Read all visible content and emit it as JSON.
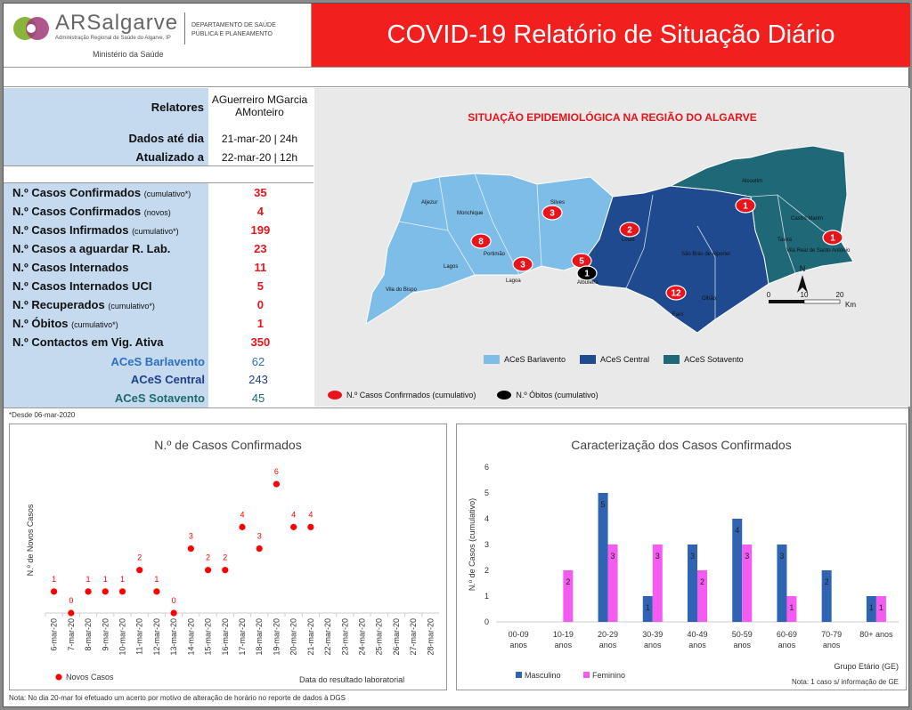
{
  "header": {
    "logo_text": "ARSalgarve",
    "logo_sub": "Administração Regional de Saúde do Algarve, IP",
    "dept": "DEPARTAMENTO DE SAÚDE PÚBLICA E PLANEAMENTO",
    "ministry": "Ministério da Saúde",
    "title": "COVID-19 Relatório de Situação Diário"
  },
  "meta": {
    "relatores_label": "Relatores",
    "relatores_value": "AGuerreiro MGarcia AMonteiro",
    "dados_label": "Dados até dia",
    "dados_value": "21-mar-20 | 24h",
    "atualizado_label": "Atualizado a",
    "atualizado_value": "22-mar-20 | 12h"
  },
  "indicators": [
    {
      "label": "N.º Casos Confirmados",
      "note": "(cumulativo*)",
      "value": "35"
    },
    {
      "label": "N.º Casos Confirmados",
      "note": "(novos)",
      "value": "4"
    },
    {
      "label": "N.º Casos Infirmados",
      "note": "(cumulativo*)",
      "value": "199"
    },
    {
      "label": "N.º Casos a aguardar R. Lab.",
      "note": "",
      "value": "23"
    },
    {
      "label": "N.º Casos Internados",
      "note": "",
      "value": "11"
    },
    {
      "label": "N.º Casos Internados UCI",
      "note": "",
      "value": "5"
    },
    {
      "label": "N.º Recuperados",
      "note": "(cumulativo*)",
      "value": "0"
    },
    {
      "label": "N.º Óbitos",
      "note": "(cumulativo*)",
      "value": "1"
    },
    {
      "label": "N.º Contactos em Vig. Ativa",
      "note": "",
      "value": "350"
    }
  ],
  "aces": [
    {
      "label": "ACeS Barlavento",
      "value": "62",
      "color": "#2e6fc0"
    },
    {
      "label": "ACeS Central",
      "value": "243",
      "color": "#1f3f8c"
    },
    {
      "label": "ACeS Sotavento",
      "value": "45",
      "color": "#1d6b6b"
    }
  ],
  "footnote": "*Desde 06-mar-2020",
  "map": {
    "title": "SITUAÇÃO EPIDEMIOLÓGICA NA REGIÃO DO ALGARVE",
    "colors": {
      "barlavento": "#7fbde9",
      "central": "#1f4a8f",
      "sotavento": "#1f6878"
    },
    "names": [
      "Aljezur",
      "Monchique",
      "Silves",
      "Lagos",
      "Portimão",
      "Lagoa",
      "Vila do Bispo",
      "Loulé",
      "Albufeira",
      "São Brás de Alportel",
      "Faro",
      "Olhão",
      "Alcoutim",
      "Castro Marim",
      "Tavira",
      "Vila Real de Santo António"
    ],
    "markers": [
      {
        "value": "3",
        "type": "case"
      },
      {
        "value": "8",
        "type": "case"
      },
      {
        "value": "3",
        "type": "case"
      },
      {
        "value": "2",
        "type": "case"
      },
      {
        "value": "5",
        "type": "case"
      },
      {
        "value": "1",
        "type": "death"
      },
      {
        "value": "12",
        "type": "case"
      },
      {
        "value": "1",
        "type": "case"
      },
      {
        "value": "1",
        "type": "case"
      }
    ],
    "scale_ticks": [
      "0",
      "10",
      "20"
    ],
    "scale_unit": "Km",
    "north": "N",
    "legend_regions": [
      "ACeS Barlavento",
      "ACeS Central",
      "ACeS Sotavento"
    ],
    "legend_markers": [
      "N.º Casos Confirmados (cumulativo)",
      "N.º Óbitos (cumulativo)"
    ]
  },
  "chart_data": [
    {
      "type": "scatter",
      "title": "N.º de Casos Confirmados",
      "xlabel": "Data do resultado laboratorial",
      "ylabel": "N.º de Novos Casos",
      "legend": "Novos Casos",
      "color": "#ff0000",
      "x": [
        "6-mar-20",
        "7-mar-20",
        "8-mar-20",
        "9-mar-20",
        "10-mar-20",
        "11-mar-20",
        "12-mar-20",
        "13-mar-20",
        "14-mar-20",
        "15-mar-20",
        "16-mar-20",
        "17-mar-20",
        "18-mar-20",
        "19-mar-20",
        "20-mar-20",
        "21-mar-20",
        "22-mar-20",
        "23-mar-20",
        "24-mar-20",
        "25-mar-20",
        "26-mar-20",
        "27-mar-20",
        "28-mar-20"
      ],
      "y": [
        1,
        0,
        1,
        1,
        1,
        2,
        1,
        0,
        3,
        2,
        2,
        4,
        3,
        6,
        4,
        4,
        null,
        null,
        null,
        null,
        null,
        null,
        null
      ],
      "ylim": [
        0,
        6.5
      ]
    },
    {
      "type": "bar",
      "title": "Caracterização dos Casos Confirmados",
      "xlabel": "Grupo Etário (GE)",
      "ylabel": "N.º de Casos (cumulativo)",
      "categories": [
        [
          "00-09",
          "anos"
        ],
        [
          "10-19",
          "anos"
        ],
        [
          "20-29",
          "anos"
        ],
        [
          "30-39",
          "anos"
        ],
        [
          "40-49",
          "anos"
        ],
        [
          "50-59",
          "anos"
        ],
        [
          "60-69",
          "anos"
        ],
        [
          "70-79",
          "anos"
        ],
        [
          "80+ anos"
        ]
      ],
      "series": [
        {
          "name": "Masculino",
          "color": "#2e64b3",
          "values": [
            0,
            0,
            5,
            1,
            3,
            4,
            3,
            2,
            1
          ],
          "labels": [
            "",
            "",
            "5",
            "1",
            "3",
            "4",
            "3",
            "2",
            "1"
          ]
        },
        {
          "name": "Feminino",
          "color": "#f45cf1",
          "values": [
            0,
            2,
            3,
            3,
            2,
            3,
            1,
            0,
            1
          ],
          "labels": [
            "",
            "2",
            "3",
            "3",
            "2",
            "3",
            "1",
            "",
            "1"
          ]
        }
      ],
      "yticks": [
        "0",
        "1",
        "2",
        "3",
        "4",
        "5",
        "6"
      ],
      "ylim": [
        0,
        6
      ],
      "note": "Nota: 1 caso s/ informação de GE"
    }
  ],
  "bottom_note": "Nota: No dia 20-mar foi efetuado um acerto por motivo de alteração de horário no reporte de dados à DGS"
}
